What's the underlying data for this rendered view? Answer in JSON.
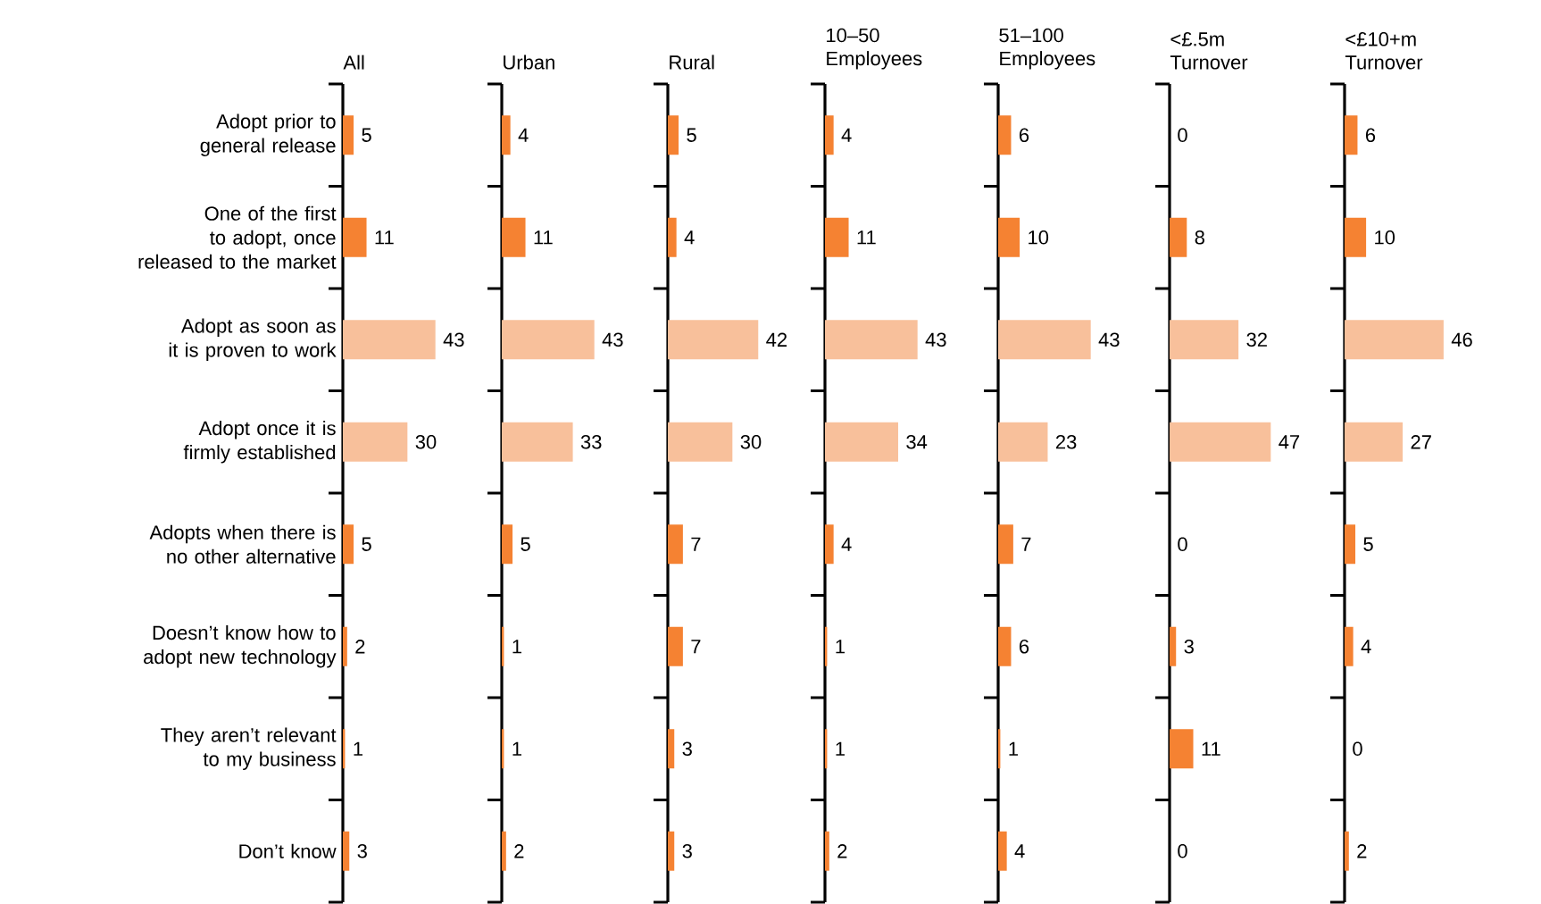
{
  "chart_data": [
    {
      "type": "bar",
      "orientation": "horizontal",
      "title": "All",
      "tick_labels": "y",
      "data_labels": true,
      "categories": [
        "Adopt prior to general release",
        "One of the first to adopt, once released to the market",
        "Adopt as soon as it is proven to work",
        "Adopt once it is firmly established",
        "Adopts when there is no other alternative",
        "Doesn’t know how to adopt new technology",
        "They aren’t relevant to my business",
        "Don’t know"
      ],
      "values": [
        5,
        11,
        43,
        30,
        5,
        2,
        1,
        3
      ],
      "colors": [
        "#f58232",
        "#f58232",
        "#f8c09b",
        "#f8c09b",
        "#f58232",
        "#f58232",
        "#f58232",
        "#f58232"
      ]
    },
    {
      "type": "bar",
      "orientation": "horizontal",
      "title": "Urban",
      "tick_labels": false,
      "data_labels": true,
      "categories": [
        null,
        null,
        null,
        null,
        null,
        null,
        null,
        null
      ],
      "values": [
        4,
        11,
        43,
        33,
        5,
        1,
        1,
        2
      ],
      "colors": [
        "#f58232",
        "#f58232",
        "#f8c09b",
        "#f8c09b",
        "#f58232",
        "#f58232",
        "#f58232",
        "#f58232"
      ]
    },
    {
      "type": "bar",
      "orientation": "horizontal",
      "title": "Rural",
      "tick_labels": false,
      "data_labels": true,
      "categories": [
        null,
        null,
        null,
        null,
        null,
        null,
        null,
        null
      ],
      "values": [
        5,
        4,
        42,
        30,
        7,
        7,
        3,
        3
      ],
      "colors": [
        "#f58232",
        "#f58232",
        "#f8c09b",
        "#f8c09b",
        "#f58232",
        "#f58232",
        "#f58232",
        "#f58232"
      ]
    },
    {
      "type": "bar",
      "orientation": "horizontal",
      "title": "10–50 Employees",
      "tick_labels": false,
      "data_labels": true,
      "categories": [
        null,
        null,
        null,
        null,
        null,
        null,
        null,
        null
      ],
      "values": [
        4,
        11,
        43,
        34,
        4,
        1,
        1,
        2
      ],
      "colors": [
        "#f58232",
        "#f58232",
        "#f8c09b",
        "#f8c09b",
        "#f58232",
        "#f58232",
        "#f58232",
        "#f58232"
      ]
    },
    {
      "type": "bar",
      "orientation": "horizontal",
      "title": "51–100 Employees",
      "tick_labels": false,
      "data_labels": true,
      "categories": [
        null,
        null,
        null,
        null,
        null,
        null,
        null,
        null
      ],
      "values": [
        6,
        10,
        43,
        23,
        7,
        6,
        1,
        4
      ],
      "colors": [
        "#f58232",
        "#f58232",
        "#f8c09b",
        "#f8c09b",
        "#f58232",
        "#f58232",
        "#f58232",
        "#f58232"
      ]
    },
    {
      "type": "bar",
      "orientation": "horizontal",
      "title": "<£.5m Turnover",
      "tick_labels": false,
      "data_labels": true,
      "categories": [
        null,
        null,
        null,
        null,
        null,
        null,
        null,
        null
      ],
      "values": [
        0,
        8,
        32,
        47,
        0,
        3,
        11,
        0
      ],
      "colors": [
        "#f58232",
        "#f58232",
        "#f8c09b",
        "#f8c09b",
        "#f58232",
        "#f58232",
        "#f58232",
        "#f58232"
      ]
    },
    {
      "type": "bar",
      "orientation": "horizontal",
      "title": "<£10+m Turnover",
      "tick_labels": false,
      "data_labels": true,
      "categories": [
        null,
        null,
        null,
        null,
        null,
        null,
        null,
        null
      ],
      "values": [
        6,
        10,
        46,
        27,
        5,
        4,
        0,
        2
      ],
      "colors": [
        "#f58232",
        "#f58232",
        "#f8c09b",
        "#f8c09b",
        "#f58232",
        "#f58232",
        "#f58232",
        "#f58232"
      ]
    }
  ]
}
